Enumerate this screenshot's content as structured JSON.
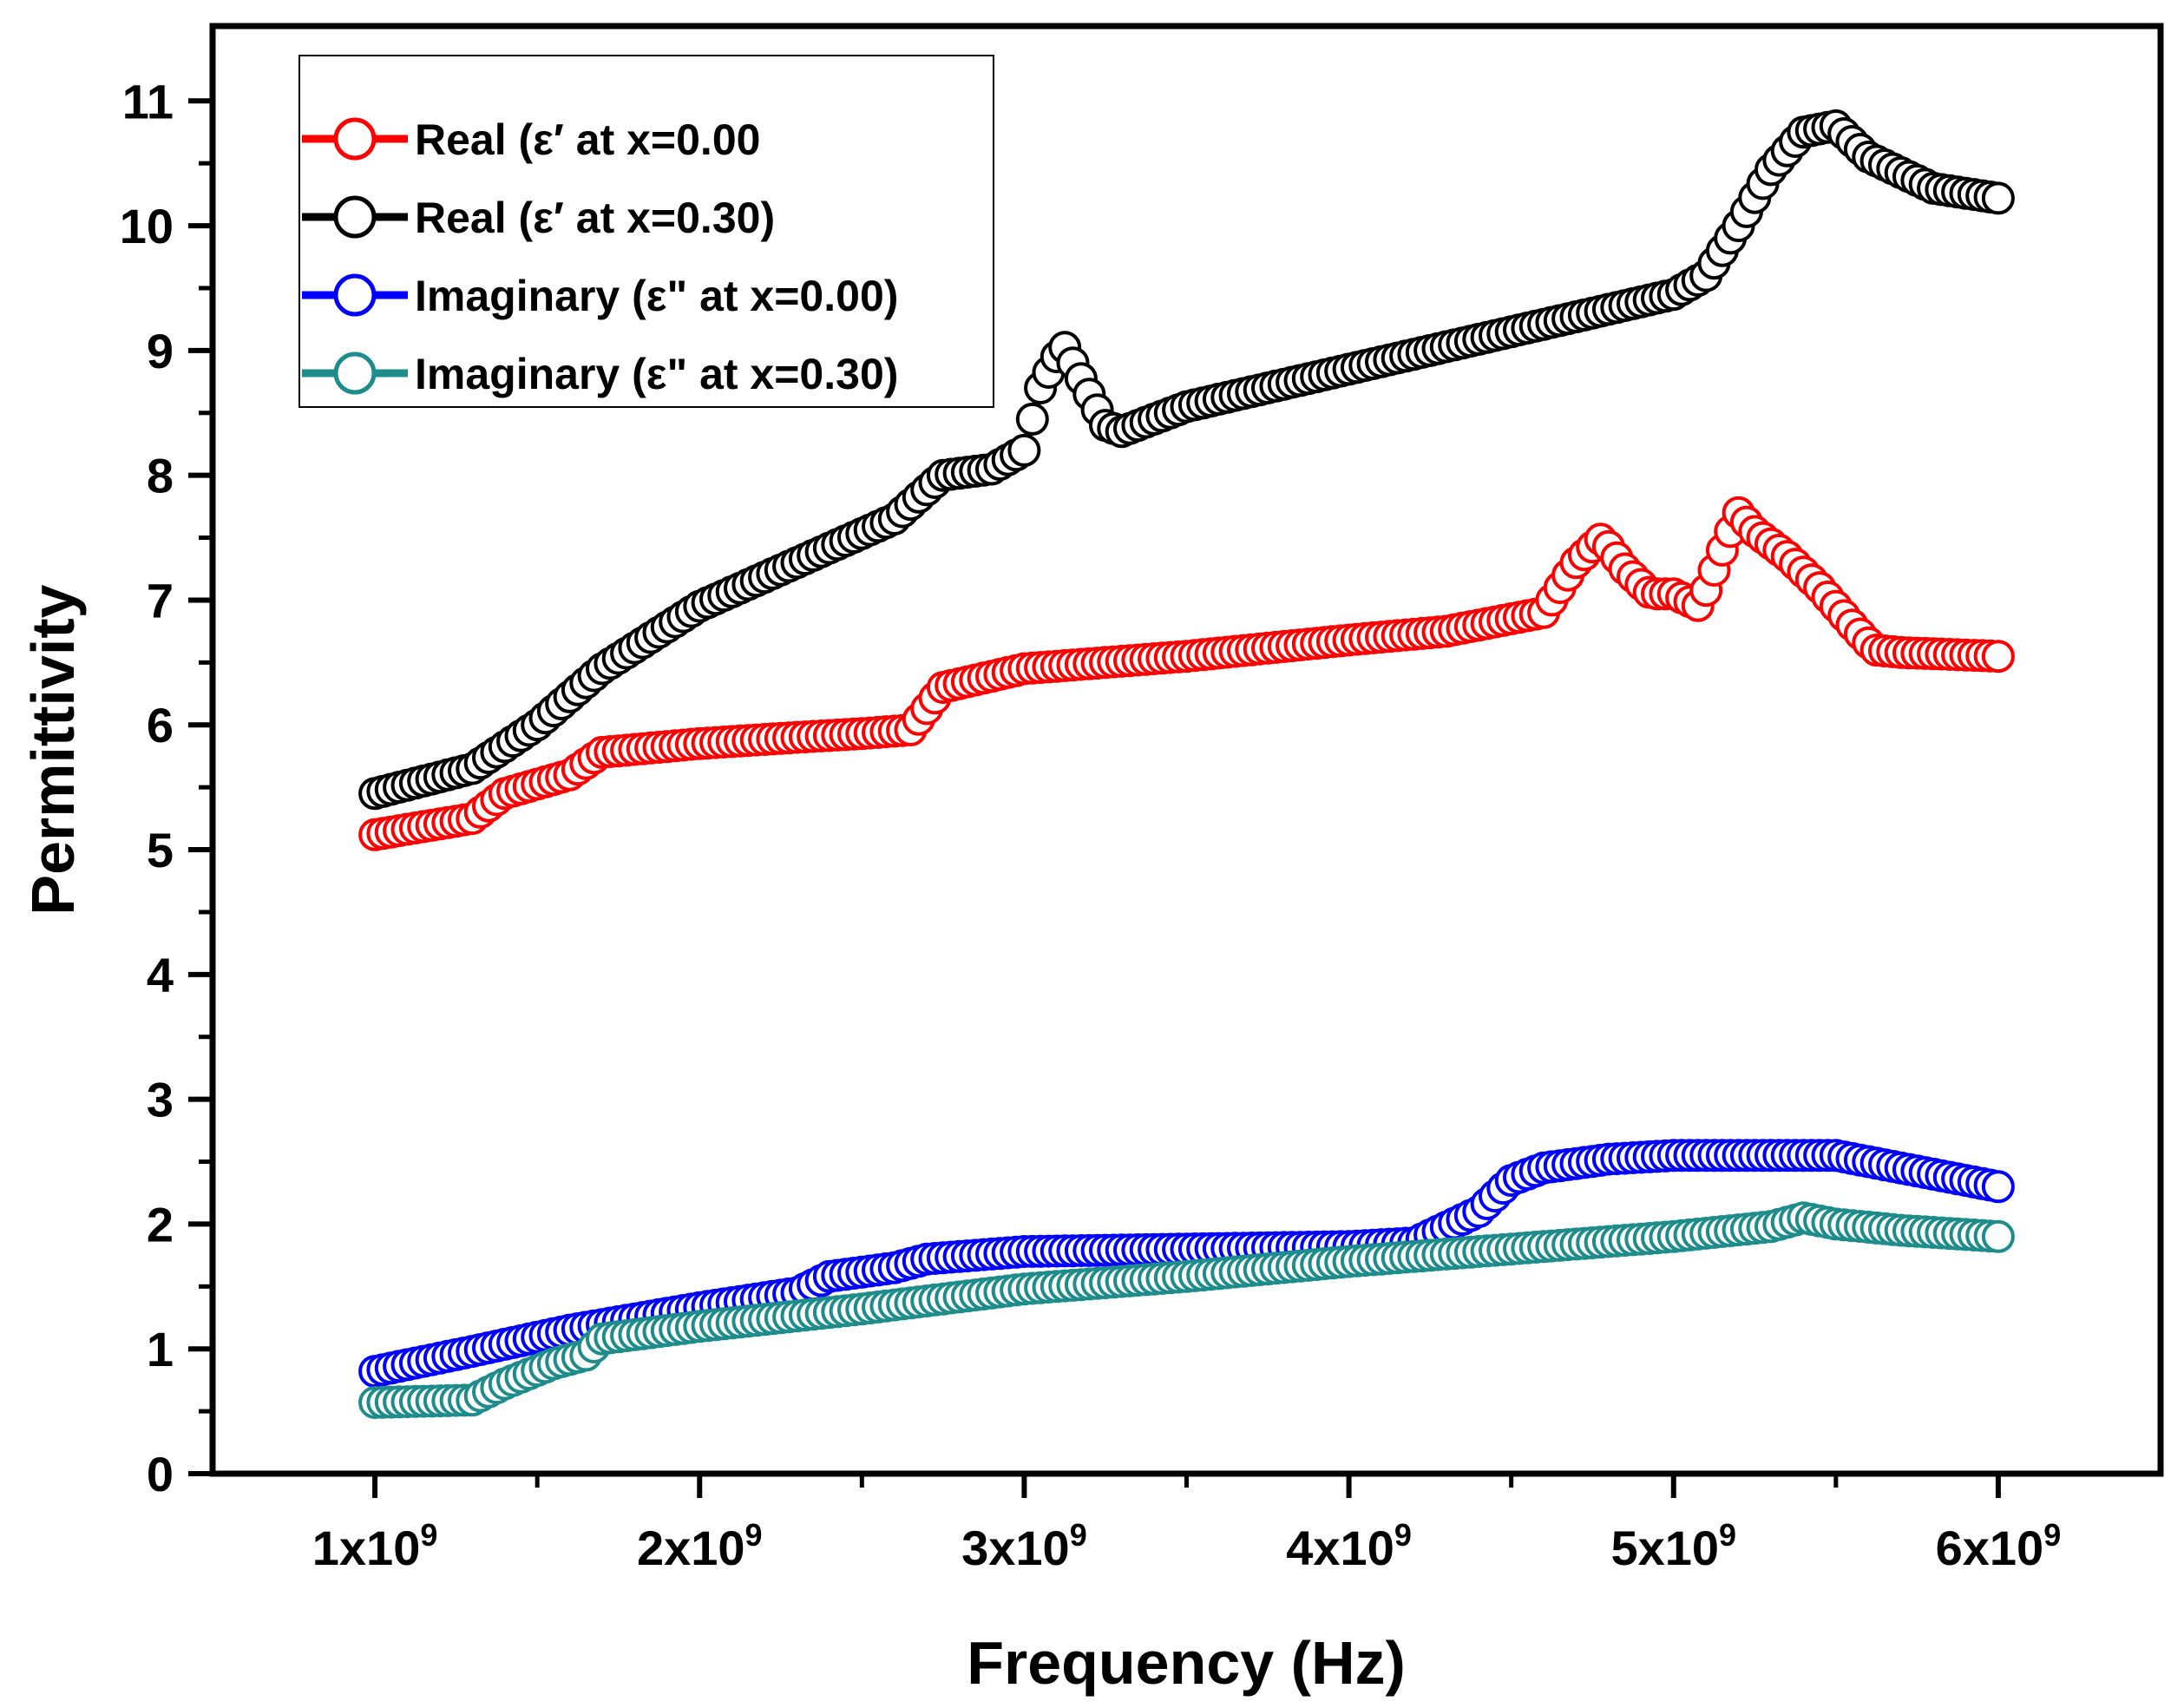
{
  "chart_data": {
    "type": "scatter",
    "title": "",
    "xlabel": "Frequency (Hz)",
    "ylabel": "Permittivity",
    "xlim": [
      500000000,
      6500000000
    ],
    "ylim": [
      0,
      11.6
    ],
    "xticks": [
      1000000000,
      2000000000,
      3000000000,
      4000000000,
      5000000000,
      6000000000
    ],
    "xtick_labels": [
      {
        "base": "1x10",
        "exp": "9"
      },
      {
        "base": "2x10",
        "exp": "9"
      },
      {
        "base": "3x10",
        "exp": "9"
      },
      {
        "base": "4x10",
        "exp": "9"
      },
      {
        "base": "5x10",
        "exp": "9"
      },
      {
        "base": "6x10",
        "exp": "9"
      }
    ],
    "yticks": [
      0,
      1,
      2,
      3,
      4,
      5,
      6,
      7,
      8,
      9,
      10,
      11
    ],
    "legend_position": "top-left",
    "series": [
      {
        "name": "Real (ε′ at x=0.00",
        "color": "#ff0000",
        "x": [
          1.0,
          1.3,
          1.4,
          1.6,
          1.7,
          2.0,
          2.3,
          2.5,
          2.65,
          2.75,
          3.0,
          3.5,
          4.0,
          4.3,
          4.6,
          4.7,
          4.78,
          4.85,
          4.93,
          5.0,
          5.08,
          5.15,
          5.2,
          5.25,
          5.35,
          5.45,
          5.55,
          5.62,
          5.7,
          6.0
        ],
        "y": [
          5.12,
          5.25,
          5.45,
          5.6,
          5.78,
          5.85,
          5.9,
          5.93,
          5.96,
          6.3,
          6.45,
          6.55,
          6.68,
          6.75,
          6.9,
          7.3,
          7.5,
          7.25,
          7.05,
          7.05,
          6.95,
          7.4,
          7.7,
          7.55,
          7.35,
          7.1,
          6.8,
          6.6,
          6.58,
          6.55
        ]
      },
      {
        "name": "Real (ε′ at x=0.30)",
        "color": "#000000",
        "x": [
          1.0,
          1.3,
          1.5,
          1.7,
          2.0,
          2.3,
          2.6,
          2.75,
          2.9,
          3.0,
          3.05,
          3.12,
          3.18,
          3.25,
          3.3,
          3.5,
          4.0,
          4.5,
          5.0,
          5.1,
          5.2,
          5.3,
          5.4,
          5.5,
          5.6,
          5.8,
          6.0
        ],
        "y": [
          5.45,
          5.65,
          6.0,
          6.45,
          6.95,
          7.3,
          7.65,
          8.0,
          8.05,
          8.2,
          8.7,
          9.05,
          8.75,
          8.4,
          8.35,
          8.55,
          8.85,
          9.15,
          9.45,
          9.6,
          10.0,
          10.45,
          10.75,
          10.8,
          10.55,
          10.3,
          10.22
        ]
      },
      {
        "name": "Imaginary (ε\" at x=0.00)",
        "color": "#0000ff",
        "x": [
          1.0,
          1.3,
          1.6,
          2.0,
          2.3,
          2.4,
          2.6,
          2.7,
          3.0,
          3.5,
          4.0,
          4.2,
          4.4,
          4.5,
          4.6,
          4.8,
          5.0,
          5.5,
          5.7,
          5.9,
          6.0
        ],
        "y": [
          0.82,
          0.98,
          1.15,
          1.33,
          1.45,
          1.58,
          1.65,
          1.72,
          1.78,
          1.8,
          1.82,
          1.85,
          2.1,
          2.35,
          2.45,
          2.52,
          2.55,
          2.55,
          2.45,
          2.35,
          2.3
        ]
      },
      {
        "name": "Imaginary (ε\" at x=0.30)",
        "color": "#1f8c8c",
        "x": [
          1.0,
          1.3,
          1.4,
          1.55,
          1.65,
          1.7,
          2.0,
          2.5,
          3.0,
          3.5,
          4.0,
          4.5,
          5.0,
          5.3,
          5.4,
          5.5,
          5.7,
          6.0
        ],
        "y": [
          0.57,
          0.59,
          0.72,
          0.88,
          0.95,
          1.08,
          1.18,
          1.32,
          1.48,
          1.58,
          1.7,
          1.8,
          1.9,
          1.98,
          2.05,
          2.0,
          1.95,
          1.9
        ]
      }
    ]
  }
}
